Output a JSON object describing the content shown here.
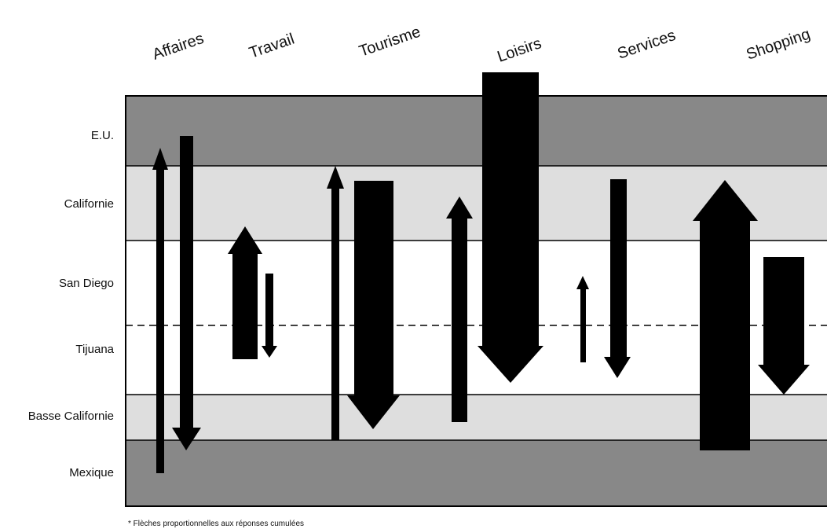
{
  "diagram": {
    "categories": [
      {
        "label": "Affaires"
      },
      {
        "label": "Travail"
      },
      {
        "label": "Tourisme"
      },
      {
        "label": "Loisirs"
      },
      {
        "label": "Services"
      },
      {
        "label": "Shopping"
      }
    ],
    "zones": [
      {
        "label": "E.U.",
        "color": "#888888"
      },
      {
        "label": "Californie",
        "color": "#dedede"
      },
      {
        "label": "San Diego",
        "color": "#ffffff"
      },
      {
        "label": "Tijuana",
        "color": "#ffffff"
      },
      {
        "label": "Basse Californie",
        "color": "#dedede"
      },
      {
        "label": "Mexique",
        "color": "#888888"
      }
    ],
    "border_line": "dashed",
    "arrow_color": "#000000",
    "footnote": "* Flèches proportionnelles aux réponses cumulées"
  }
}
